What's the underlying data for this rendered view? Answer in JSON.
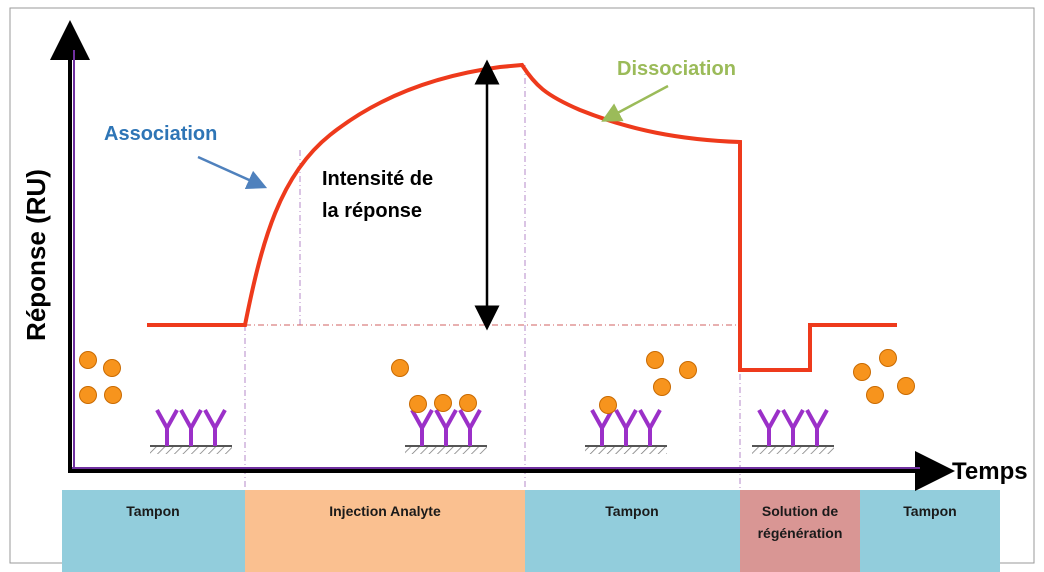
{
  "diagram": {
    "y_axis_label": "Réponse (RU)",
    "x_axis_label": "Temps",
    "annotations": {
      "association": "Association",
      "dissociation": "Dissociation",
      "intensity": [
        "Intensité de",
        "la réponse"
      ]
    },
    "phases": [
      {
        "label": [
          "Tampon"
        ]
      },
      {
        "label": [
          "Injection Analyte"
        ]
      },
      {
        "label": [
          "Tampon"
        ]
      },
      {
        "label": [
          "Solution de",
          "régénération"
        ]
      },
      {
        "label": [
          "Tampon"
        ]
      }
    ]
  }
}
